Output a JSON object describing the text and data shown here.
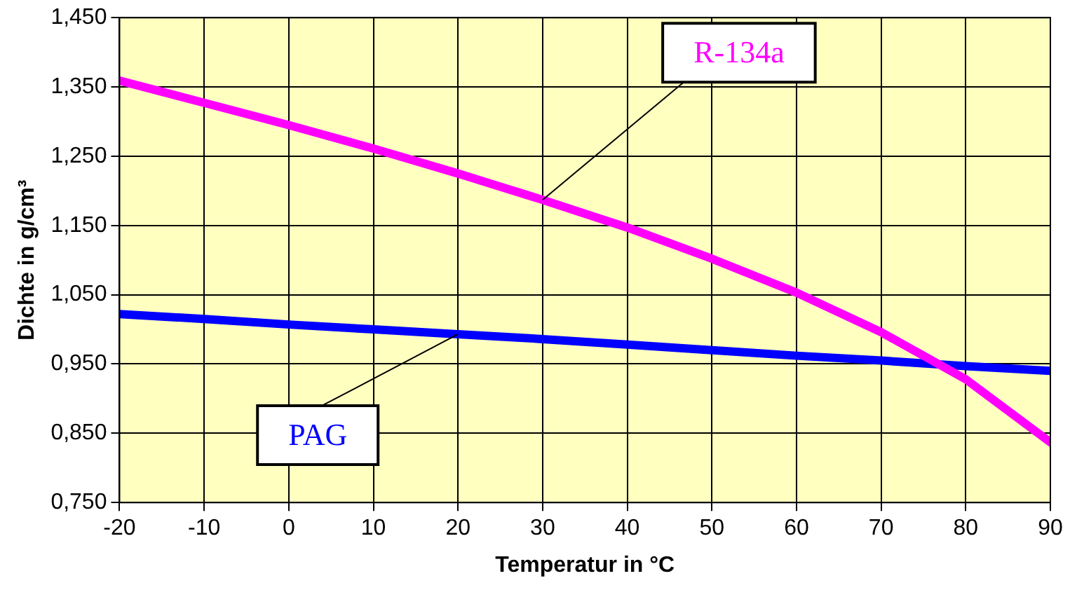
{
  "chart_data": {
    "type": "line",
    "xlabel": "Temperatur in °C",
    "ylabel": "Dichte in g/cm³",
    "x": [
      -20,
      -10,
      0,
      10,
      20,
      30,
      40,
      50,
      60,
      70,
      80,
      90
    ],
    "series": [
      {
        "name": "R-134a",
        "color": "#ff00ff",
        "values": [
          1.359,
          1.327,
          1.295,
          1.261,
          1.225,
          1.187,
          1.147,
          1.102,
          1.053,
          0.996,
          0.928,
          0.837
        ]
      },
      {
        "name": "PAG",
        "color": "#0000ff",
        "values": [
          1.022,
          1.015,
          1.007,
          1.0,
          0.993,
          0.986,
          0.978,
          0.97,
          0.962,
          0.955,
          0.947,
          0.94
        ]
      }
    ],
    "xlim": [
      -20,
      90
    ],
    "xticks": [
      -20,
      -10,
      0,
      10,
      20,
      30,
      40,
      50,
      60,
      70,
      80,
      90
    ],
    "ylim": [
      0.75,
      1.45
    ],
    "yticks": [
      {
        "value": 0.75,
        "label": "0,750"
      },
      {
        "value": 0.85,
        "label": "0,850"
      },
      {
        "value": 0.95,
        "label": "0,950"
      },
      {
        "value": 1.05,
        "label": "1,050"
      },
      {
        "value": 1.15,
        "label": "1,150"
      },
      {
        "value": 1.25,
        "label": "1,250"
      },
      {
        "value": 1.35,
        "label": "1,350"
      },
      {
        "value": 1.45,
        "label": "1,450"
      }
    ],
    "grid": true,
    "legend": false,
    "marker": "none",
    "line_style": "solid"
  }
}
